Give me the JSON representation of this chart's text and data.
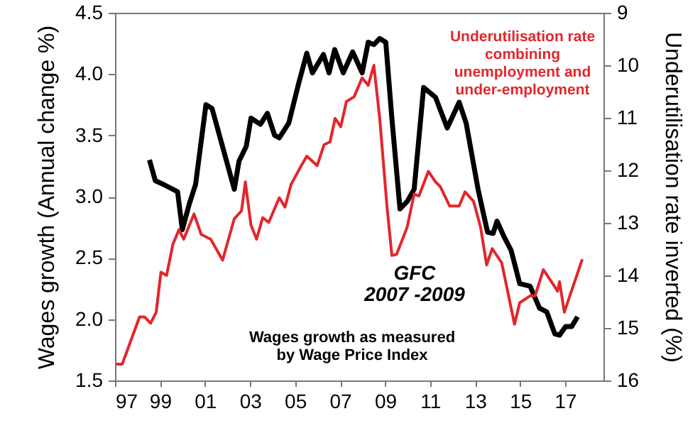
{
  "chart_data": {
    "type": "line",
    "xlabel": null,
    "ylabel": "Wages growth (Annual change %)",
    "y2label": "Underutilisation rate inverted (%)",
    "xlim": [
      1997,
      2018.7
    ],
    "xticks": [
      {
        "value": 1997,
        "label": "97"
      },
      {
        "value": 1999,
        "label": "99"
      },
      {
        "value": 2001,
        "label": "01"
      },
      {
        "value": 2003,
        "label": "03"
      },
      {
        "value": 2005,
        "label": "05"
      },
      {
        "value": 2007,
        "label": "07"
      },
      {
        "value": 2009,
        "label": "09"
      },
      {
        "value": 2011,
        "label": "11"
      },
      {
        "value": 2013,
        "label": "13"
      },
      {
        "value": 2015,
        "label": "15"
      },
      {
        "value": 2017,
        "label": "17"
      }
    ],
    "ylim": [
      1.5,
      4.5
    ],
    "yticks": [
      1.5,
      {
        "value": 2,
        "label": "2.0"
      },
      2.5,
      {
        "value": 3,
        "label": "3.0"
      },
      3.5,
      {
        "value": 4,
        "label": "4.0"
      },
      4.5
    ],
    "y2lim": [
      16,
      9
    ],
    "y2ticks": [
      9,
      10,
      11,
      12,
      13,
      14,
      15,
      16
    ],
    "annotations": [
      "GFC\n2007 -2009"
    ],
    "series": [
      {
        "name": "Wages growth as measured by Wage Price Index",
        "color": "#000000",
        "x": [
          1998.53,
          1998.79,
          1999.15,
          1999.78,
          1999.99,
          2000.3,
          2000.58,
          2001.04,
          2001.31,
          2002.3,
          2002.51,
          2002.83,
          2003.04,
          2003.46,
          2003.77,
          2004.09,
          2004.3,
          2004.72,
          2005.14,
          2005.52,
          2005.77,
          2006.26,
          2006.51,
          2006.76,
          2007.14,
          2007.56,
          2007.98,
          2008.25,
          2008.5,
          2008.76,
          2009.03,
          2009.3,
          2009.66,
          2009.98,
          2010.29,
          2010.71,
          2011.24,
          2011.76,
          2012.29,
          2012.6,
          2013.13,
          2013.55,
          2013.8,
          2013.97,
          2014.29,
          2014.6,
          2014.98,
          2015.44,
          2015.86,
          2016.18,
          2016.54,
          2016.75,
          2017.02,
          2017.29,
          2017.55
        ],
        "values": [
          3.3,
          3.13,
          3.1,
          3.04,
          2.73,
          2.94,
          3.1,
          3.75,
          3.72,
          3.06,
          3.29,
          3.41,
          3.64,
          3.59,
          3.68,
          3.5,
          3.48,
          3.6,
          3.91,
          4.17,
          4.01,
          4.16,
          4.01,
          4.2,
          4.01,
          4.18,
          4.01,
          4.26,
          4.24,
          4.29,
          4.26,
          3.64,
          2.9,
          2.96,
          3.06,
          3.89,
          3.81,
          3.56,
          3.77,
          3.6,
          3.06,
          2.71,
          2.7,
          2.8,
          2.67,
          2.56,
          2.29,
          2.27,
          2.09,
          2.06,
          1.88,
          1.87,
          1.94,
          1.94,
          2.02
        ]
      },
      {
        "name": "Underutilisation rate combining unemployment and under-employment",
        "color": "#e3262b",
        "axis": "y2",
        "x": [
          1997.04,
          1997.32,
          1998.09,
          1998.31,
          1998.58,
          1998.83,
          1999.04,
          1999.29,
          1999.57,
          1999.84,
          2000.05,
          2000.51,
          2000.83,
          2001.25,
          2001.78,
          2002.3,
          2002.62,
          2002.79,
          2003.04,
          2003.29,
          2003.56,
          2003.83,
          2004.3,
          2004.55,
          2004.82,
          2005.25,
          2005.52,
          2005.98,
          2006.29,
          2006.55,
          2006.78,
          2007.03,
          2007.28,
          2007.62,
          2007.98,
          2008.25,
          2008.5,
          2008.76,
          2009.09,
          2009.3,
          2009.51,
          2009.98,
          2010.29,
          2010.5,
          2010.92,
          2011.24,
          2011.45,
          2011.87,
          2012.29,
          2012.55,
          2012.93,
          2013.24,
          2013.51,
          2013.76,
          2014.18,
          2014.75,
          2014.98,
          2015.44,
          2015.66,
          2016.03,
          2016.39,
          2016.66,
          2016.75,
          2016.96,
          2017.76
        ],
        "values": [
          15.69,
          15.69,
          14.79,
          14.79,
          14.91,
          14.7,
          13.94,
          14.0,
          13.41,
          13.13,
          13.31,
          12.83,
          13.22,
          13.31,
          13.71,
          12.92,
          12.77,
          12.22,
          13.04,
          13.31,
          12.9,
          12.99,
          12.52,
          12.7,
          12.27,
          11.93,
          11.73,
          11.91,
          11.51,
          11.46,
          11.01,
          11.17,
          10.69,
          10.6,
          10.24,
          10.38,
          10.0,
          11.01,
          12.72,
          13.62,
          13.6,
          13.08,
          12.45,
          12.49,
          12.02,
          12.22,
          12.31,
          12.68,
          12.68,
          12.41,
          12.59,
          13.08,
          13.8,
          13.49,
          13.76,
          14.93,
          14.52,
          14.39,
          14.39,
          13.89,
          14.12,
          14.3,
          14.12,
          14.7,
          13.69
        ]
      }
    ]
  }
}
